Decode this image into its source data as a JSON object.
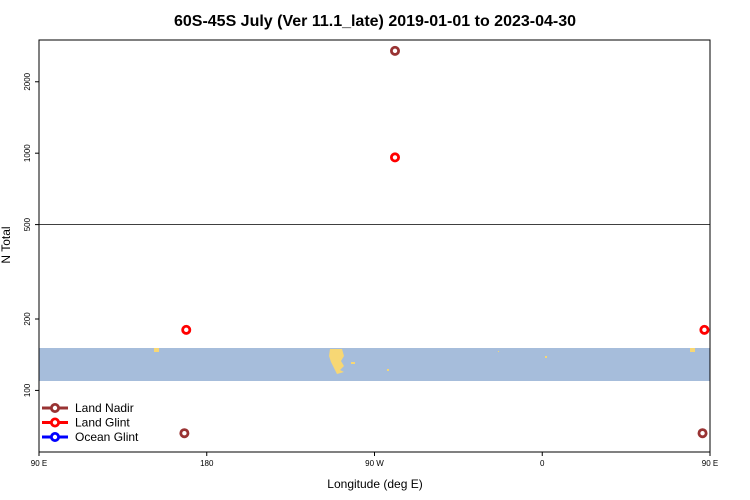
{
  "chart_data": {
    "type": "scatter",
    "title": "60S-45S July (Ver 11.1_late)   2019-01-01 to 2023-04-30",
    "xlabel": "Longitude (deg E)",
    "ylabel": "N Total",
    "x_axis": {
      "range": [
        90,
        450
      ],
      "ticks": [
        {
          "value": 90,
          "label": "90 E"
        },
        {
          "value": 180,
          "label": "180"
        },
        {
          "value": 270,
          "label": "90 W"
        },
        {
          "value": 360,
          "label": "0"
        },
        {
          "value": 450,
          "label": "90 E"
        }
      ]
    },
    "y_axis": {
      "scale": "log",
      "range": [
        55,
        3000
      ],
      "ticks": [
        {
          "value": 100,
          "label": "100"
        },
        {
          "value": 200,
          "label": "200"
        },
        {
          "value": 500,
          "label": "500"
        },
        {
          "value": 1000,
          "label": "1000"
        },
        {
          "value": 2000,
          "label": "2000"
        }
      ],
      "reference_line": 500
    },
    "series": [
      {
        "name": "Land Nadir",
        "color": "#993333",
        "points": [
          {
            "x": 281,
            "y": 2700
          },
          {
            "x": 168,
            "y": 66
          },
          {
            "x": 446,
            "y": 66
          }
        ]
      },
      {
        "name": "Land Glint",
        "color": "#ff0000",
        "points": [
          {
            "x": 281,
            "y": 960
          },
          {
            "x": 169,
            "y": 180
          },
          {
            "x": 447,
            "y": 180
          }
        ]
      },
      {
        "name": "Ocean Glint",
        "color": "#0000ff",
        "points": []
      }
    ],
    "legend": {
      "position": "bottom-left"
    },
    "map_strip": {
      "ocean_color": "#a6bddb",
      "land_color": "#f7d774"
    }
  }
}
